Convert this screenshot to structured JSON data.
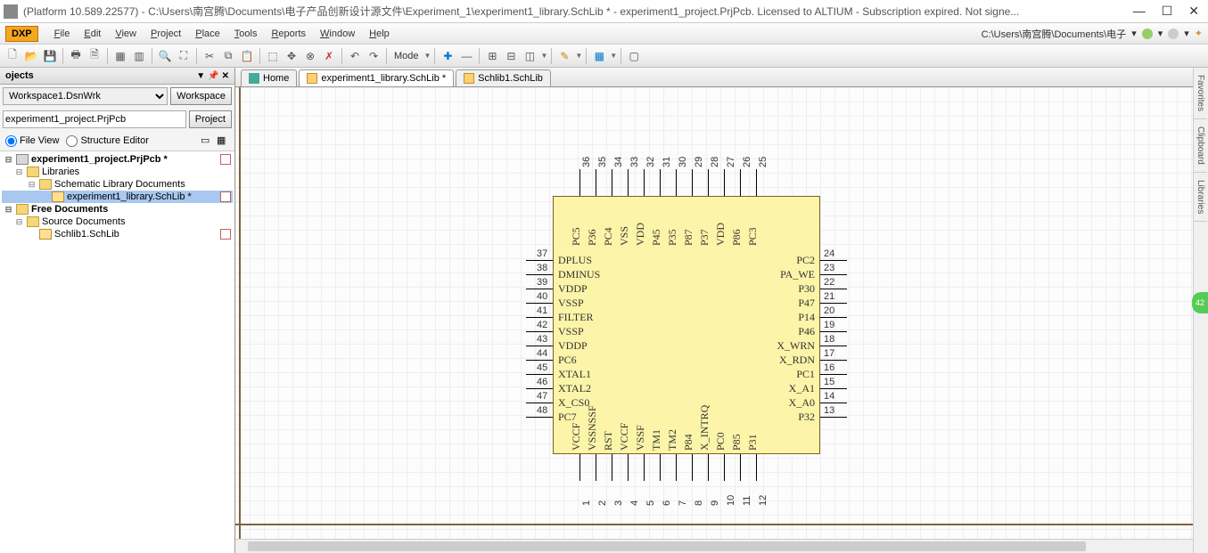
{
  "titlebar": {
    "text": "(Platform 10.589.22577) - C:\\Users\\南宫腾\\Documents\\电子产品创新设计源文件\\Experiment_1\\experiment1_library.SchLib * - experiment1_project.PrjPcb. Licensed to ALTIUM - Subscription expired. Not signe...",
    "min": "—",
    "max": "☐",
    "close": "✕"
  },
  "menu": {
    "dxp": "DXP",
    "items": [
      "File",
      "Edit",
      "View",
      "Project",
      "Place",
      "Tools",
      "Reports",
      "Window",
      "Help"
    ],
    "right_path": "C:\\Users\\南宫腾\\Documents\\电子"
  },
  "toolbar": {
    "mode": "Mode"
  },
  "panel": {
    "title": "ojects",
    "workspace": "Workspace1.DsnWrk",
    "ws_btn": "Workspace",
    "project": "experiment1_project.PrjPcb",
    "prj_btn": "Project",
    "fileview": "File View",
    "structed": "Structure Editor"
  },
  "tree": {
    "n0": "experiment1_project.PrjPcb *",
    "n1": "Libraries",
    "n2": "Schematic Library Documents",
    "n3": "experiment1_library.SchLib *",
    "n4": "Free Documents",
    "n5": "Source Documents",
    "n6": "Schlib1.SchLib"
  },
  "tabs": {
    "home": "Home",
    "t1": "experiment1_library.SchLib *",
    "t2": "Schlib1.SchLib"
  },
  "rside": {
    "t1": "Favorites",
    "t2": "Clipboard",
    "t3": "Libraries"
  },
  "badge": "42",
  "pins": {
    "left": [
      {
        "num": "37",
        "name": "DPLUS"
      },
      {
        "num": "38",
        "name": "DMINUS"
      },
      {
        "num": "39",
        "name": "VDDP"
      },
      {
        "num": "40",
        "name": "VSSP"
      },
      {
        "num": "41",
        "name": "FILTER"
      },
      {
        "num": "42",
        "name": "VSSP"
      },
      {
        "num": "43",
        "name": "VDDP"
      },
      {
        "num": "44",
        "name": "PC6"
      },
      {
        "num": "45",
        "name": "XTAL1"
      },
      {
        "num": "46",
        "name": "XTAL2"
      },
      {
        "num": "47",
        "name": "X_CS0"
      },
      {
        "num": "48",
        "name": "PC7"
      }
    ],
    "right": [
      {
        "num": "24",
        "name": "PC2"
      },
      {
        "num": "23",
        "name": "PA_WE"
      },
      {
        "num": "22",
        "name": "P30"
      },
      {
        "num": "21",
        "name": "P47"
      },
      {
        "num": "20",
        "name": "P14"
      },
      {
        "num": "19",
        "name": "P46"
      },
      {
        "num": "18",
        "name": "X_WRN"
      },
      {
        "num": "17",
        "name": "X_RDN"
      },
      {
        "num": "16",
        "name": "PC1"
      },
      {
        "num": "15",
        "name": "X_A1"
      },
      {
        "num": "14",
        "name": "X_A0"
      },
      {
        "num": "13",
        "name": "P32"
      }
    ],
    "top": [
      {
        "num": "36",
        "name": "PC5"
      },
      {
        "num": "35",
        "name": "P36"
      },
      {
        "num": "34",
        "name": "PC4"
      },
      {
        "num": "33",
        "name": "VSS"
      },
      {
        "num": "32",
        "name": "VDD"
      },
      {
        "num": "31",
        "name": "P45"
      },
      {
        "num": "30",
        "name": "P35"
      },
      {
        "num": "29",
        "name": "P87"
      },
      {
        "num": "28",
        "name": "P37"
      },
      {
        "num": "27",
        "name": "VDD"
      },
      {
        "num": "26",
        "name": "P86"
      },
      {
        "num": "25",
        "name": "PC3"
      }
    ],
    "bottom": [
      {
        "num": "1",
        "name": "VCCF"
      },
      {
        "num": "2",
        "name": "VSSNSSF"
      },
      {
        "num": "3",
        "name": "RST"
      },
      {
        "num": "4",
        "name": "VCCF"
      },
      {
        "num": "5",
        "name": "VSSF"
      },
      {
        "num": "6",
        "name": "TM1"
      },
      {
        "num": "7",
        "name": "TM2"
      },
      {
        "num": "8",
        "name": "P84"
      },
      {
        "num": "9",
        "name": "X_INTRQ"
      },
      {
        "num": "10",
        "name": "PC0"
      },
      {
        "num": "11",
        "name": "P85"
      },
      {
        "num": "12",
        "name": "P31"
      }
    ]
  }
}
